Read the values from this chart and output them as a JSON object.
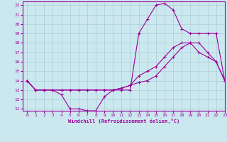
{
  "bg_color": "#cce8ef",
  "line_color": "#990099",
  "grid_color": "#aaccd8",
  "xlim": [
    -0.5,
    23
  ],
  "ylim": [
    10.8,
    22.4
  ],
  "yticks": [
    11,
    12,
    13,
    14,
    15,
    16,
    17,
    18,
    19,
    20,
    21,
    22
  ],
  "xticks": [
    0,
    1,
    2,
    3,
    4,
    5,
    6,
    7,
    8,
    9,
    10,
    11,
    12,
    13,
    14,
    15,
    16,
    17,
    18,
    19,
    20,
    21,
    22,
    23
  ],
  "xlabel": "Windchill (Refroidissement éolien,°C)",
  "curve1_x": [
    0,
    1,
    2,
    3,
    4,
    5,
    6,
    7,
    8,
    9,
    10,
    11,
    12,
    13,
    14,
    15,
    16,
    17,
    18,
    19,
    20,
    21,
    22,
    23
  ],
  "curve1_y": [
    14,
    13,
    13,
    13,
    12.5,
    11.0,
    11.0,
    10.8,
    10.8,
    12.3,
    13.0,
    13.0,
    13.0,
    19.0,
    20.5,
    22.0,
    22.2,
    21.5,
    19.5,
    19.0,
    19.0,
    19.0,
    19.0,
    14.0
  ],
  "curve2_x": [
    0,
    1,
    2,
    3,
    4,
    5,
    6,
    7,
    8,
    9,
    10,
    11,
    12,
    13,
    14,
    15,
    16,
    17,
    18,
    19,
    20,
    21,
    22,
    23
  ],
  "curve2_y": [
    14,
    13,
    13,
    13,
    13.0,
    13.0,
    13.0,
    13.0,
    13.0,
    13.0,
    13.0,
    13.2,
    13.5,
    14.5,
    15.0,
    15.5,
    16.5,
    17.5,
    18.0,
    18.0,
    18.0,
    17.0,
    16.0,
    14.0
  ],
  "curve3_x": [
    0,
    1,
    2,
    3,
    4,
    5,
    6,
    7,
    8,
    9,
    10,
    11,
    12,
    13,
    14,
    15,
    16,
    17,
    18,
    19,
    20,
    21,
    22,
    23
  ],
  "curve3_y": [
    14,
    13,
    13,
    13,
    13.0,
    13.0,
    13.0,
    13.0,
    13.0,
    13.0,
    13.0,
    13.2,
    13.5,
    13.8,
    14.0,
    14.5,
    15.5,
    16.5,
    17.5,
    18.0,
    17.0,
    16.5,
    16.0,
    14.0
  ]
}
